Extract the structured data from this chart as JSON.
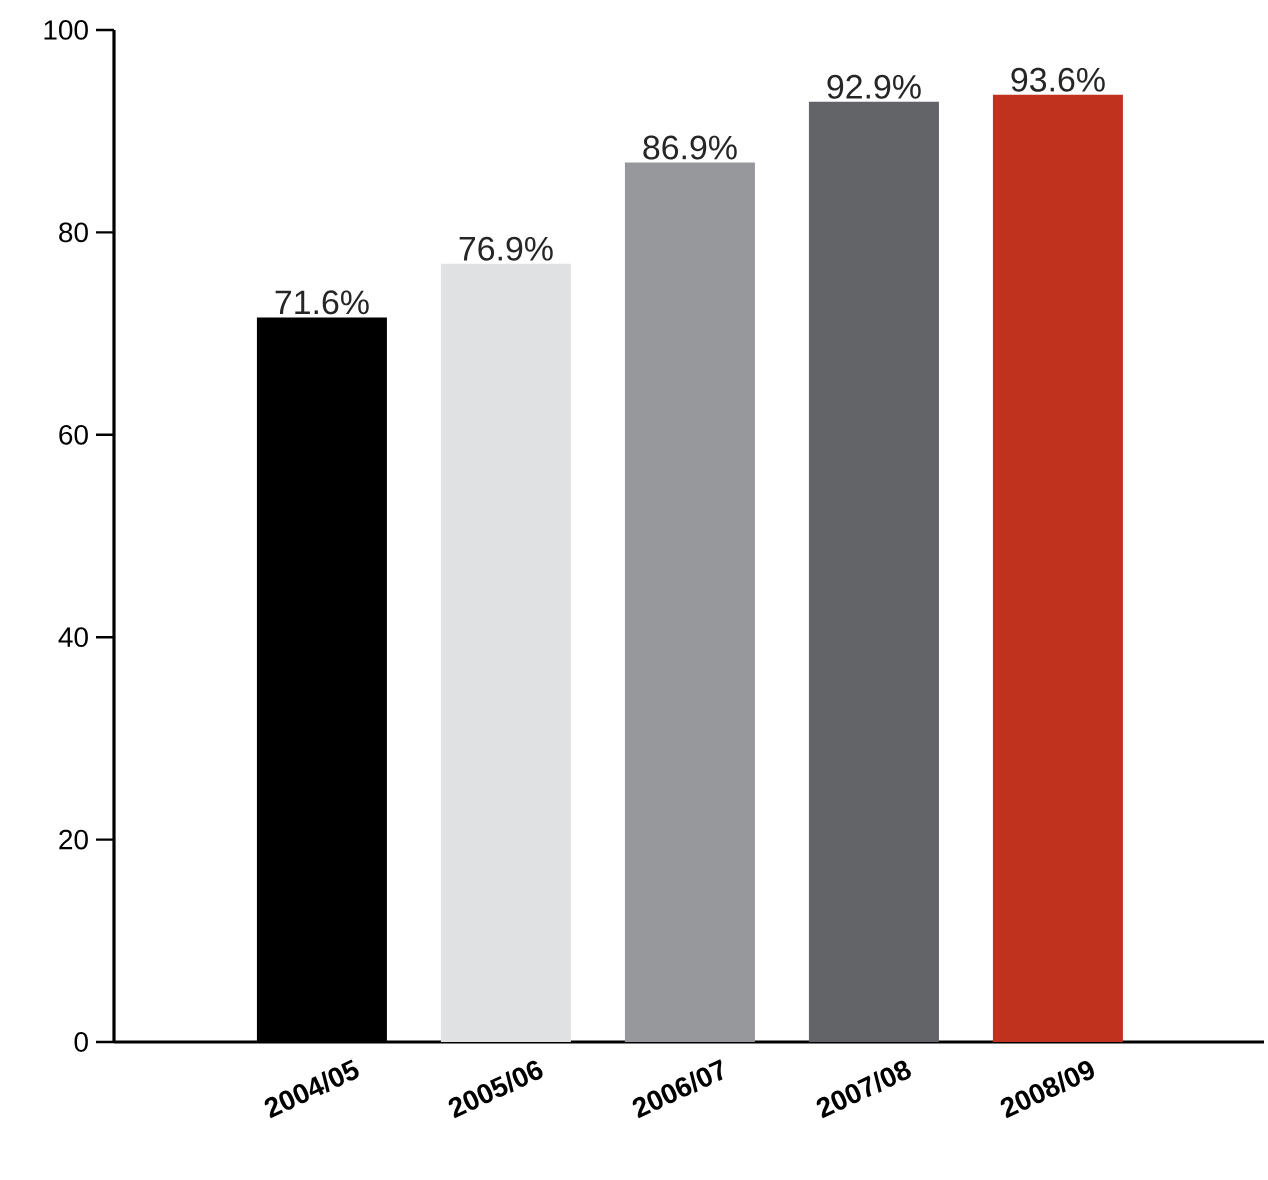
{
  "chart_data": {
    "type": "bar",
    "categories": [
      "2004/05",
      "2005/06",
      "2006/07",
      "2007/08",
      "2008/09"
    ],
    "values": [
      71.6,
      76.9,
      86.9,
      92.9,
      93.6
    ],
    "colors": [
      "#000000",
      "#e0e1e3",
      "#97989b",
      "#636467",
      "#c0311e"
    ],
    "value_labels": [
      "71.6%",
      "76.9%",
      "86.9%",
      "92.9%",
      "93.6%"
    ],
    "ylim": [
      0,
      100
    ],
    "yticks": [
      0,
      20,
      40,
      60,
      80,
      100
    ]
  }
}
